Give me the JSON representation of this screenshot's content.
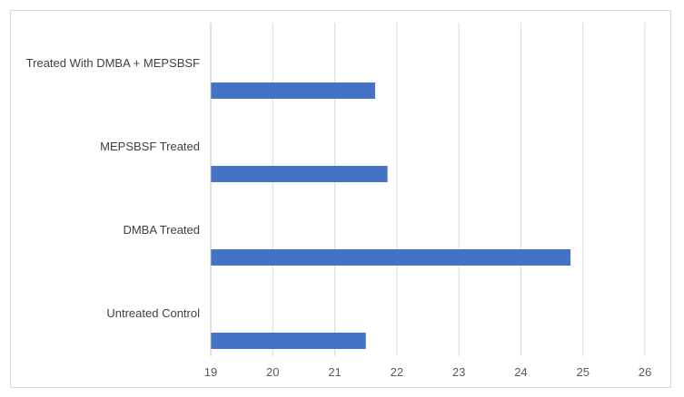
{
  "chart_data": {
    "type": "bar",
    "orientation": "horizontal",
    "title": "",
    "xlabel": "",
    "ylabel": "",
    "categories": [
      "Treated With DMBA + MEPSBSF",
      "MEPSBSF Treated",
      "DMBA Treated",
      "Untreated Control"
    ],
    "values": [
      21.65,
      21.85,
      24.8,
      21.5
    ],
    "xlim": [
      19,
      26
    ],
    "x_ticks": [
      "19",
      "20",
      "21",
      "22",
      "23",
      "24",
      "25",
      "26"
    ],
    "grid": "vertical",
    "legend": "none",
    "bar_color": "#4472c4",
    "grid_color": "#d9d9d9",
    "axis_color": "#bfbfbf"
  }
}
